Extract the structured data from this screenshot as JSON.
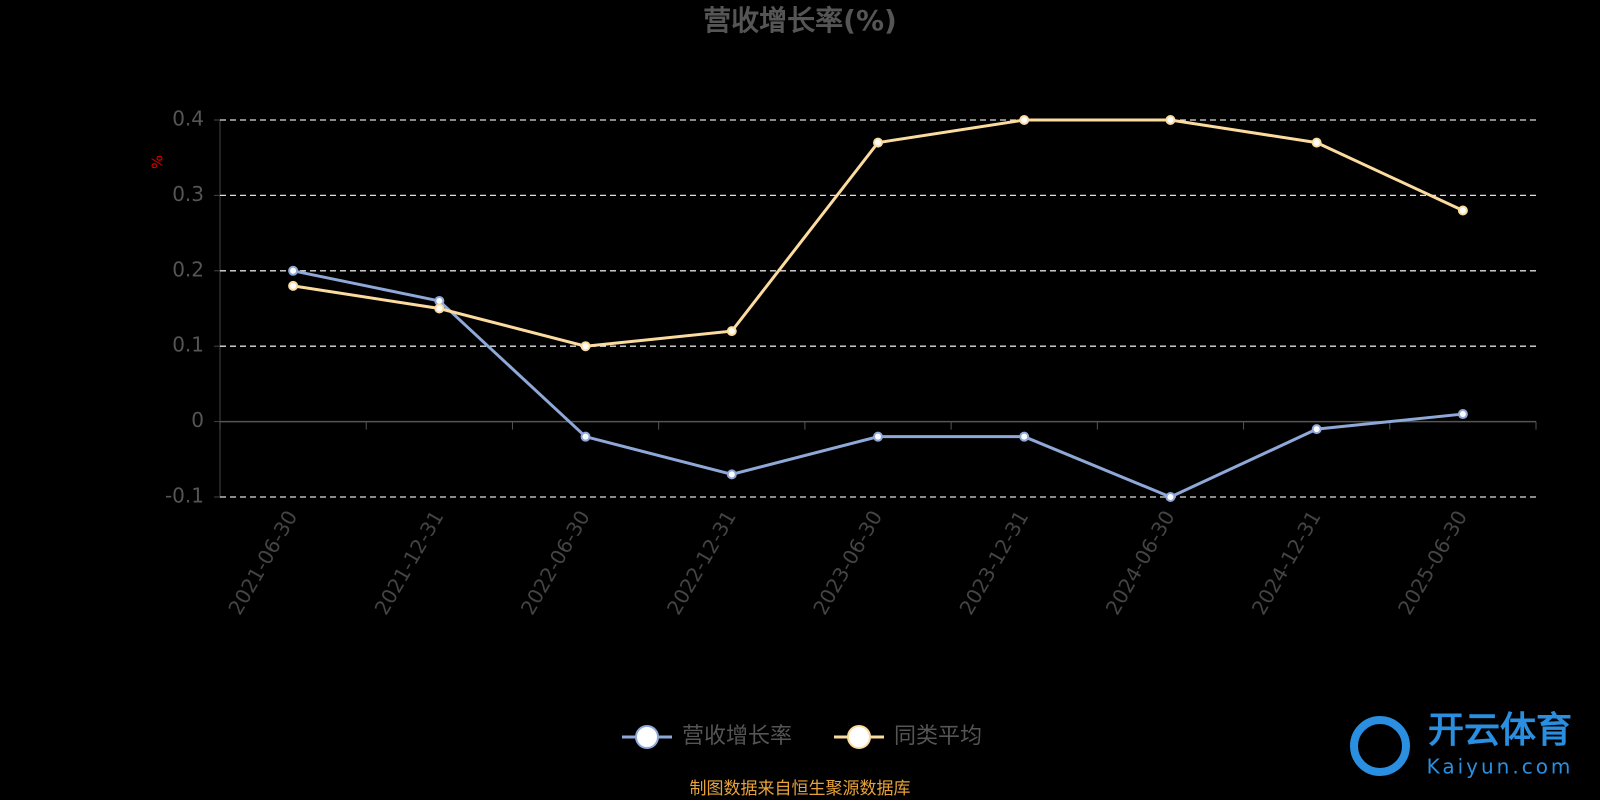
{
  "chart_data": {
    "type": "line",
    "title": "营收增长率(%)",
    "y_label": "%",
    "categories": [
      "2021-06-30",
      "2021-12-31",
      "2022-06-30",
      "2022-12-31",
      "2023-06-30",
      "2023-12-31",
      "2024-06-30",
      "2024-12-31",
      "2025-06-30"
    ],
    "series": [
      {
        "name": "营收增长率",
        "color": "#8ea8d8",
        "values": [
          0.2,
          0.16,
          -0.02,
          -0.07,
          -0.02,
          -0.02,
          -0.1,
          -0.01,
          0.01
        ]
      },
      {
        "name": "同类平均",
        "color": "#fcdb9f",
        "values": [
          0.18,
          0.15,
          0.1,
          0.12,
          0.37,
          0.4,
          0.4,
          0.37,
          0.28
        ]
      }
    ],
    "ylim": [
      -0.1,
      0.4
    ],
    "yticks": [
      -0.1,
      0,
      0.1,
      0.2,
      0.3,
      0.4
    ],
    "grid": true,
    "source": "制图数据来自恒生聚源数据库",
    "watermark": {
      "brand": "开云体育",
      "site": "Kaiyun.com"
    }
  }
}
